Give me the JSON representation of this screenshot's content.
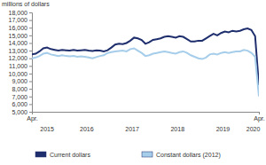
{
  "chart_data": {
    "type": "line",
    "y_label": "millions of dollars",
    "categories": [
      "Apr.",
      null,
      null,
      null,
      null,
      null,
      null,
      null,
      null,
      null,
      null,
      null,
      null,
      null,
      null,
      null,
      null,
      null,
      null,
      null,
      null,
      null,
      null,
      null,
      null,
      null,
      null,
      null,
      null,
      null,
      null,
      null,
      null,
      null,
      null,
      null,
      null,
      null,
      null,
      null,
      null,
      null,
      null,
      null,
      null,
      null,
      null,
      null,
      null,
      null,
      null,
      null,
      null,
      null,
      null,
      null,
      null,
      null,
      null,
      null,
      "Apr."
    ],
    "year_labels": [
      "2015",
      "2016",
      "2017",
      "2018",
      "2019",
      "2020"
    ],
    "series": [
      {
        "name": "Current dollars",
        "color": "#1f2f6e",
        "values": [
          12500,
          12600,
          12900,
          13300,
          13400,
          13200,
          13100,
          13000,
          13100,
          13050,
          13000,
          13100,
          13000,
          13050,
          13100,
          13000,
          12950,
          13050,
          13000,
          12900,
          13050,
          13400,
          13800,
          13900,
          13850,
          14000,
          14300,
          14700,
          14600,
          14400,
          13900,
          14100,
          14400,
          14500,
          14600,
          14800,
          14900,
          14800,
          14700,
          14900,
          14800,
          14500,
          14200,
          14200,
          14300,
          14300,
          14600,
          14900,
          15200,
          15000,
          15300,
          15500,
          15400,
          15600,
          15500,
          15600,
          15800,
          15900,
          15700,
          14900,
          8500
        ]
      },
      {
        "name": "Constant dollars (2012)",
        "color": "#a6cdea",
        "values": [
          12000,
          12100,
          12300,
          12600,
          12700,
          12500,
          12400,
          12300,
          12400,
          12300,
          12250,
          12300,
          12200,
          12250,
          12200,
          12100,
          12000,
          12150,
          12300,
          12400,
          12700,
          12800,
          12900,
          12950,
          13000,
          12900,
          13200,
          13300,
          13000,
          12700,
          12300,
          12400,
          12600,
          12700,
          12800,
          12900,
          12800,
          12700,
          12600,
          12800,
          12900,
          12700,
          12400,
          12200,
          12000,
          11900,
          12100,
          12500,
          12600,
          12500,
          12700,
          12800,
          12700,
          12800,
          12900,
          12900,
          13100,
          13000,
          12700,
          12200,
          7000
        ]
      }
    ],
    "ylim": [
      5000,
      18000
    ],
    "yticks": [
      {
        "value": 5000,
        "label": "5,000"
      },
      {
        "value": 6000,
        "label": "6,000"
      },
      {
        "value": 7000,
        "label": "7,000"
      },
      {
        "value": 8000,
        "label": "8,000"
      },
      {
        "value": 9000,
        "label": "9,000"
      },
      {
        "value": 10000,
        "label": "10,000"
      },
      {
        "value": 11000,
        "label": "11,000"
      },
      {
        "value": 12000,
        "label": "12,000"
      },
      {
        "value": 13000,
        "label": "13,000"
      },
      {
        "value": 14000,
        "label": "14,000"
      },
      {
        "value": 15000,
        "label": "15,000"
      },
      {
        "value": 16000,
        "label": "16,000"
      },
      {
        "value": 17000,
        "label": "17,000"
      },
      {
        "value": 18000,
        "label": "18,000"
      }
    ],
    "grid": false,
    "legend": "bottom"
  }
}
